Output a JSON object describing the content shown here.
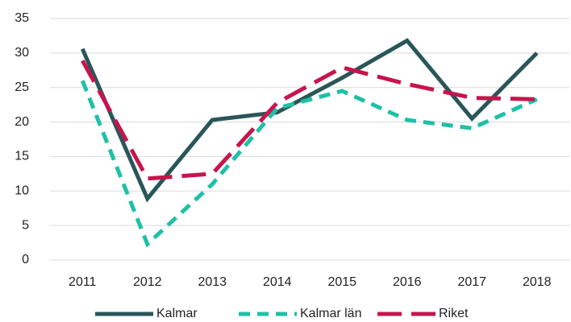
{
  "chart_data": {
    "type": "line",
    "categories": [
      "2011",
      "2012",
      "2013",
      "2014",
      "2015",
      "2016",
      "2017",
      "2018"
    ],
    "series": [
      {
        "name": "Kalmar",
        "color": "#295659",
        "dash": "solid",
        "values": [
          30.6,
          8.9,
          20.3,
          21.4,
          26.4,
          31.8,
          20.5,
          30.0
        ]
      },
      {
        "name": "Kalmar län",
        "color": "#1fc0a6",
        "dash": "dashed",
        "values": [
          26.0,
          2.3,
          11.0,
          22.0,
          24.5,
          20.3,
          19.1,
          23.3
        ]
      },
      {
        "name": "Riket",
        "color": "#c8144c",
        "dash": "longdash",
        "values": [
          28.9,
          11.8,
          12.5,
          22.8,
          27.9,
          25.5,
          23.5,
          23.3
        ]
      }
    ],
    "ylim": [
      0,
      35
    ],
    "yticks": [
      0,
      5,
      10,
      15,
      20,
      25,
      30,
      35
    ],
    "grid": true,
    "legend": "bottom"
  }
}
